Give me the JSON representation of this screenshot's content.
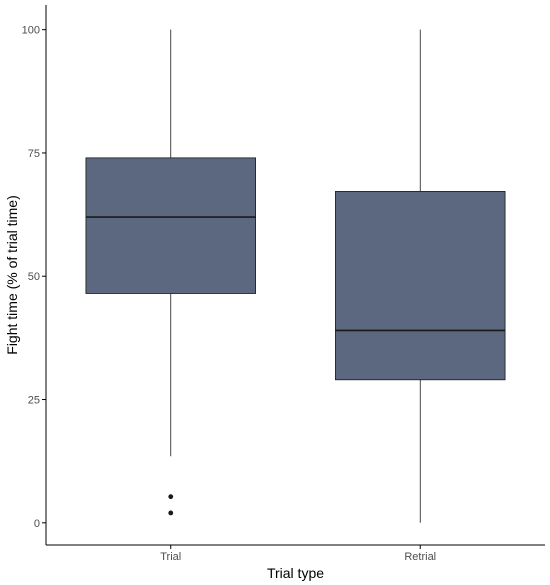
{
  "chart_data": {
    "type": "boxplot",
    "title": "",
    "xlabel": "Trial type",
    "ylabel": "Fight time (% of trial time)",
    "ylim": [
      -4.5,
      105
    ],
    "yticks": [
      0,
      25,
      50,
      75,
      100
    ],
    "grid": false,
    "categories": [
      "Trial",
      "Retrial"
    ],
    "boxes": [
      {
        "category": "Trial",
        "whisker_low": 13.5,
        "q1": 46.5,
        "median": 62,
        "q3": 74,
        "whisker_high": 100,
        "outliers": [
          5.3,
          2.0
        ]
      },
      {
        "category": "Retrial",
        "whisker_low": 0,
        "q1": 29,
        "median": 39,
        "q3": 67.2,
        "whisker_high": 100,
        "outliers": []
      }
    ],
    "colors": {
      "box_fill": "#5b687f",
      "box_line": "#1a1a1a",
      "axis": "#000000"
    }
  }
}
